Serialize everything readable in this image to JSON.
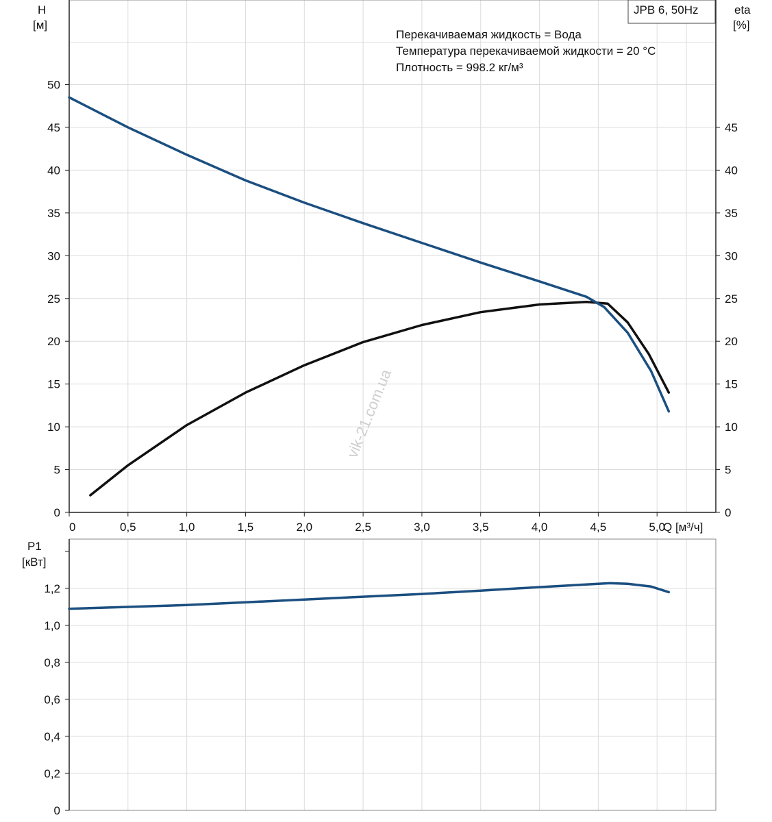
{
  "watermark": "vik-21.com.ua",
  "chart_data": [
    {
      "type": "line",
      "title": "JPB 6, 50Hz",
      "annotations": [
        "Перекачиваемая жидкость = Вода",
        "Температура перекачиваемой жидкости = 20 °C",
        "Плотность = 998.2 кг/м³"
      ],
      "ylabel": [
        "H",
        "[м]"
      ],
      "ylabel_right": [
        "eta",
        "[%]"
      ],
      "xlabel": "Q [м³/ч]",
      "x_ticks": [
        "0",
        "0,5",
        "1,0",
        "1,5",
        "2,0",
        "2,5",
        "3,0",
        "3,5",
        "4,0",
        "4,5",
        "5,0"
      ],
      "y_ticks": [
        "0",
        "5",
        "10",
        "15",
        "20",
        "25",
        "30",
        "35",
        "40",
        "45",
        "50"
      ],
      "y_ticks_right": [
        "0",
        "5",
        "10",
        "15",
        "20",
        "25",
        "30",
        "35",
        "40",
        "45"
      ],
      "xlim": [
        0,
        5.5
      ],
      "ylim": [
        0,
        50
      ],
      "grid": true,
      "series": [
        {
          "color": "#1b4f80",
          "axis": "left",
          "x": [
            0,
            0.5,
            1.0,
            1.5,
            2.0,
            2.5,
            3.0,
            3.5,
            4.0,
            4.4,
            4.55,
            4.75,
            4.95,
            5.1
          ],
          "values": [
            48.5,
            45.0,
            41.8,
            38.8,
            36.2,
            33.8,
            31.5,
            29.2,
            27.0,
            25.2,
            24.0,
            21.0,
            16.5,
            11.8
          ]
        },
        {
          "color": "#111111",
          "axis": "right",
          "x": [
            0.18,
            0.5,
            1.0,
            1.5,
            2.0,
            2.5,
            3.0,
            3.5,
            4.0,
            4.4,
            4.58,
            4.75,
            4.93,
            5.1
          ],
          "values": [
            2.0,
            5.5,
            10.2,
            14.0,
            17.2,
            19.9,
            21.9,
            23.4,
            24.3,
            24.6,
            24.4,
            22.2,
            18.5,
            14.0
          ]
        }
      ]
    },
    {
      "type": "line",
      "ylabel": [
        "P1",
        "[кВт]"
      ],
      "y_ticks": [
        "0",
        "0,2",
        "0,4",
        "0,6",
        "0,8",
        "1,0",
        "1,2"
      ],
      "xlim": [
        0,
        5.5
      ],
      "ylim": [
        0,
        1.2
      ],
      "grid": true,
      "series": [
        {
          "color": "#1b4f80",
          "x": [
            0,
            0.5,
            1.0,
            1.5,
            2.0,
            2.5,
            3.0,
            3.5,
            4.0,
            4.5,
            4.6,
            4.75,
            4.95,
            5.1
          ],
          "values": [
            1.09,
            1.1,
            1.11,
            1.125,
            1.14,
            1.155,
            1.17,
            1.188,
            1.207,
            1.225,
            1.228,
            1.225,
            1.21,
            1.18
          ]
        }
      ]
    }
  ]
}
